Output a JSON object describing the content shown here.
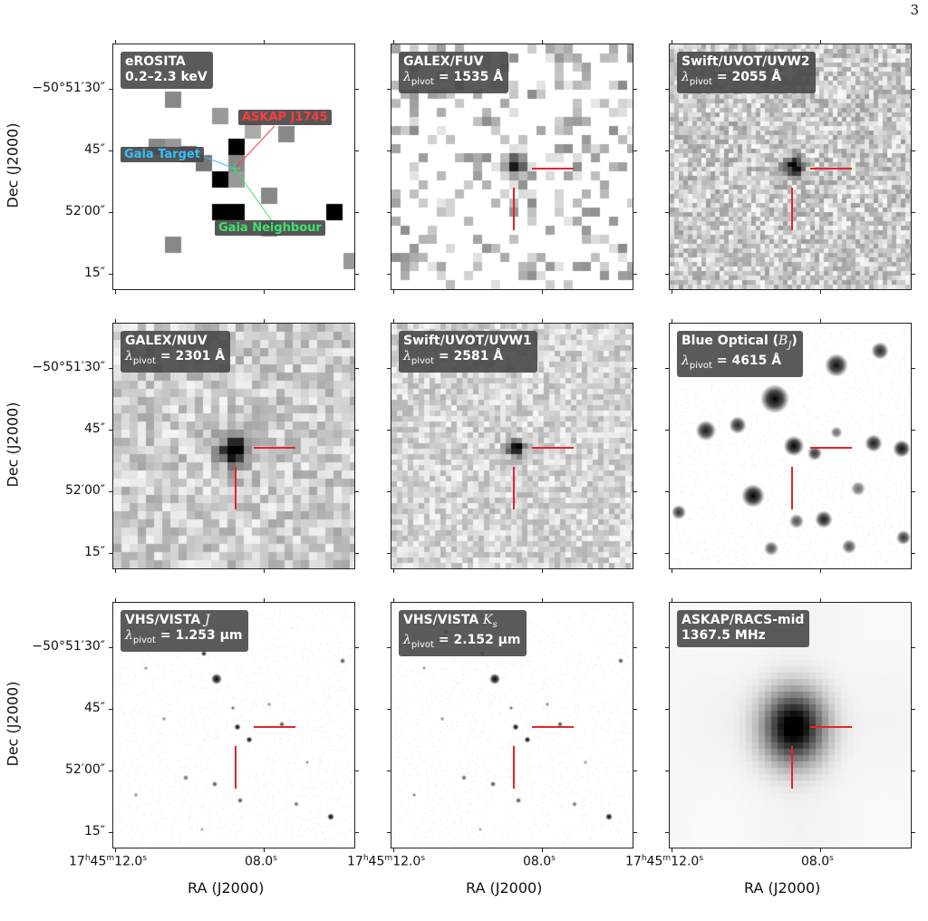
{
  "page_number": "3",
  "panels": [
    {
      "id": "erosita",
      "line1": "eROSITA",
      "line2": "0.2–2.3 keV"
    },
    {
      "id": "galex-fuv",
      "line1": "GALEX/FUV",
      "line2": " = 1535 Å"
    },
    {
      "id": "uvot-uvw2",
      "line1": "Swift/UVOT/UVW2",
      "line2": " = 2055 Å"
    },
    {
      "id": "galex-nuv",
      "line1": "GALEX/NUV",
      "line2": " = 2301 Å"
    },
    {
      "id": "uvot-uvw1",
      "line1": "Swift/UVOT/UVW1",
      "line2": " = 2581 Å"
    },
    {
      "id": "blue-optical",
      "line1": "Blue Optical (",
      "line1_after": ")",
      "line2": " = 4615 Å"
    },
    {
      "id": "vista-j",
      "line1": "VHS/VISTA ",
      "line2": " = 1.253 μm"
    },
    {
      "id": "vista-ks",
      "line1": "VHS/VISTA ",
      "line2": " = 2.152 μm"
    },
    {
      "id": "racs-mid",
      "line1": "ASKAP/RACS-mid",
      "line2": "1367.5 MHz"
    }
  ],
  "lambda_symbol": "λ",
  "pivot_subscript": "pivot",
  "band_bj": "B",
  "band_bj_sub": "J",
  "band_j": "J",
  "band_ks": "K",
  "band_ks_sub": "s",
  "annotations": {
    "askap": "ASKAP J1745",
    "gaia_target": "Gaia Target",
    "gaia_neighbour": "Gaia Neighbour"
  },
  "y_ticks": [
    "−50°51′30″",
    "45″",
    "52′00″",
    "15″"
  ],
  "y_axis_label": "Dec (J2000)",
  "x_ticks": {
    "left_h": "17",
    "left_m": "45",
    "left_s": "12.0",
    "right": "08.0",
    "h": "h",
    "m": "m",
    "s": "s"
  },
  "x_axis_label": "RA (J2000)",
  "colors": {
    "crosshair": "#e8222b",
    "askap_tag": "#ff3b3b",
    "gaia_target_tag": "#35c0ff",
    "gaia_neighbour_tag": "#3be36b",
    "label_bg": "#484848"
  }
}
